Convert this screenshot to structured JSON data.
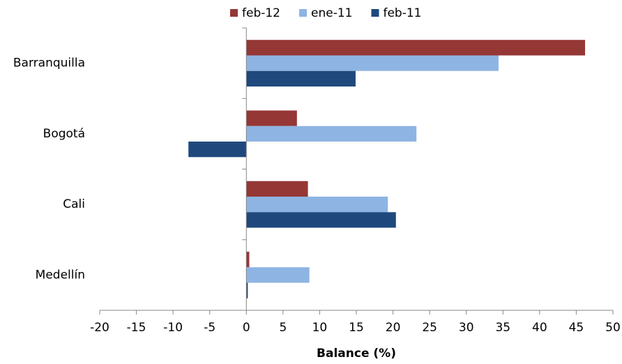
{
  "chart_data": {
    "type": "hbar",
    "categories": [
      "Barranquilla",
      "Bogotá",
      "Cali",
      "Medellín"
    ],
    "series": [
      {
        "name": "feb-12",
        "color": "#953735",
        "values": [
          46.2,
          6.9,
          8.4,
          0.4
        ]
      },
      {
        "name": "ene-11",
        "color": "#8eb4e3",
        "values": [
          34.4,
          23.2,
          19.3,
          8.6
        ]
      },
      {
        "name": "feb-11",
        "color": "#1f497d",
        "values": [
          14.9,
          -7.9,
          20.4,
          0.2
        ]
      }
    ],
    "x_label": "Balance (%)",
    "xlim": [
      -20,
      50
    ],
    "xticks": [
      -20,
      -15,
      -10,
      -5,
      0,
      5,
      10,
      15,
      20,
      25,
      30,
      35,
      40,
      45,
      50
    ],
    "legend": "top"
  }
}
